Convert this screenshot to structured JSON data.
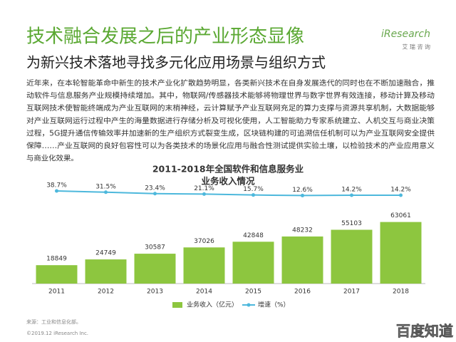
{
  "header": {
    "title": "技术融合发展之后的产业形态显像",
    "subtitle": "为新兴技术落地寻找多元化应用场景与组织方式",
    "logo": "iResearch",
    "logo_sub": "艾 瑞 咨 询"
  },
  "body_lines": [
    "近年来，在本轮智能革命中新生的技术产业化扩散趋势明显，各类新兴技术在自身发展迭代的同时也在不断加速融合，推",
    "动软件与信息服务产业规模持续增加。其中，物联网/传感器技术能够将物理世界与数字世界有效连接，移动计算及移动",
    "互联网技术使智能终端成为产业互联网的末梢神经，云计算赋予产业互联网充足的算力支撑与资源共享机制，大数据能够",
    "对产业互联网运行过程中产生的海量数据进行存储分析及可视化使用，人工智能助力专家系统建立、人机交互与商业决策",
    "过程，5G提升通信传输效率并加速新的生产组织方式裂变生成，区块链构建的可追溯信任机制可以为产业互联网安全提供",
    "保障……产业互联网的良好包容性可以为各类技术的场景化应用与融合性测试提供实验土壤，以检验技术的产业应用意义",
    "与商业化效果。"
  ],
  "chart_data": {
    "type": "bar_line",
    "title": "2011-2018年全国软件和信息服务业",
    "subtitle": "业务收入情况",
    "categories": [
      "2011",
      "2012",
      "2013",
      "2014",
      "2015",
      "2016",
      "2017",
      "2018"
    ],
    "series": [
      {
        "name": "业务收入（亿元）",
        "color": "#8dc63f",
        "values": [
          18849,
          24749,
          30587,
          37026,
          42848,
          48232,
          55103,
          63061
        ]
      },
      {
        "name": "增速（%）",
        "color": "#4db8dc",
        "axis": "y2",
        "values": [
          38.7,
          31.5,
          23.4,
          21.1,
          15.7,
          12.6,
          14.2,
          14.2
        ],
        "value_labels": [
          "38.7%",
          "31.5%",
          "23.4%",
          "21.1%",
          "15.7%",
          "12.6%",
          "14.2%",
          "14.2%"
        ]
      }
    ],
    "ylim": [
      0,
      108000
    ],
    "y2lim": [
      -490,
      112
    ],
    "legend": "bottom"
  },
  "footer": {
    "source": "来源：工业和信息化部。",
    "copyright": "©2019.12 iResearch Inc.",
    "watermark": "百度知道"
  }
}
